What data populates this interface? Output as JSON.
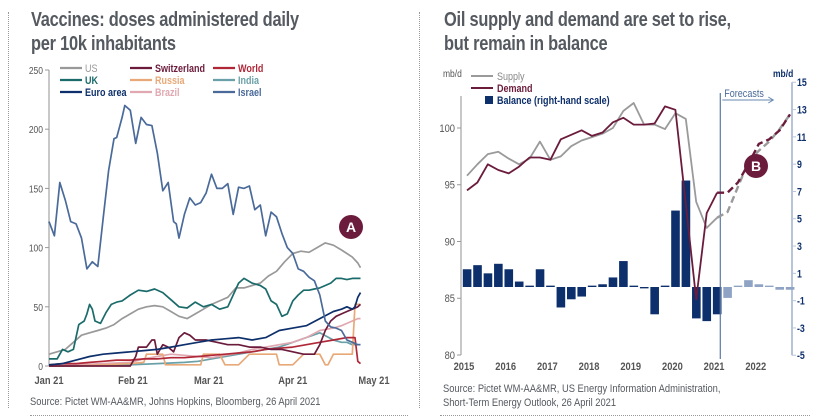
{
  "chart_data": [
    {
      "type": "line",
      "title": "Vaccines: doses administered daily per 10k inhabitants",
      "xlabel": "",
      "ylabel": "",
      "ylim": [
        0,
        250
      ],
      "yticks": [
        0,
        50,
        100,
        150,
        200,
        250
      ],
      "ytick_labels": [
        "0",
        "50",
        "100",
        "150",
        "200",
        "250"
      ],
      "xtick_labels": [
        "Jan 21",
        "Feb 21",
        "Mar 21",
        "Apr 21",
        "May 21"
      ],
      "xtick_days": [
        0,
        31,
        59,
        90,
        120
      ],
      "x_unit": "days since 1 Jan 2021",
      "grid": false,
      "legend_position": "top-left",
      "annotation": "A",
      "source": "Source: Pictet WM-AA&MR, Johns Hopkins, Bloomberg, 26 April 2021",
      "series": [
        {
          "name": "Israel",
          "color": "#4a6a9a",
          "x": [
            0,
            2,
            4,
            6,
            8,
            10,
            12,
            14,
            16,
            18,
            20,
            22,
            24,
            25,
            27,
            28,
            30,
            32,
            34,
            36,
            38,
            40,
            42,
            44,
            46,
            47,
            48,
            50,
            52,
            54,
            56,
            58,
            60,
            62,
            64,
            66,
            68,
            70,
            72,
            74,
            76,
            78,
            80,
            82,
            84,
            86,
            88,
            90,
            92,
            94,
            96,
            98,
            100,
            102,
            104,
            106,
            108,
            110,
            112,
            114,
            115
          ],
          "values": [
            122,
            110,
            155,
            140,
            122,
            120,
            108,
            82,
            88,
            84,
            125,
            165,
            192,
            193,
            210,
            220,
            216,
            188,
            210,
            204,
            203,
            180,
            148,
            155,
            122,
            120,
            108,
            128,
            142,
            136,
            138,
            146,
            162,
            150,
            150,
            154,
            128,
            151,
            150,
            152,
            132,
            136,
            110,
            130,
            126,
            112,
            100,
            95,
            82,
            80,
            75,
            72,
            60,
            38,
            33,
            32,
            30,
            22,
            20,
            18,
            18
          ]
        },
        {
          "name": "UK",
          "color": "#1b6b6b",
          "x": [
            0,
            3,
            5,
            7,
            9,
            11,
            13,
            14,
            15,
            16,
            17,
            19,
            21,
            23,
            25,
            27,
            30,
            33,
            36,
            39,
            42,
            45,
            48,
            51,
            54,
            57,
            60,
            63,
            66,
            68,
            70,
            72,
            75,
            78,
            80,
            82,
            84,
            86,
            88,
            90,
            92,
            94,
            96,
            98,
            100,
            102,
            104,
            106,
            108,
            110,
            112,
            114,
            115
          ],
          "values": [
            6,
            6,
            14,
            12,
            14,
            35,
            38,
            44,
            52,
            48,
            38,
            36,
            45,
            52,
            54,
            55,
            60,
            64,
            63,
            65,
            62,
            56,
            50,
            49,
            54,
            50,
            52,
            48,
            50,
            60,
            70,
            74,
            70,
            68,
            65,
            55,
            52,
            42,
            44,
            55,
            60,
            64,
            64,
            65,
            66,
            68,
            70,
            74,
            74,
            73,
            74,
            74,
            74
          ]
        },
        {
          "name": "US",
          "color": "#999999",
          "x": [
            0,
            3,
            6,
            9,
            12,
            15,
            18,
            21,
            24,
            27,
            30,
            33,
            36,
            39,
            42,
            45,
            48,
            51,
            54,
            57,
            60,
            63,
            66,
            69,
            72,
            75,
            78,
            81,
            84,
            87,
            90,
            93,
            96,
            99,
            102,
            105,
            108,
            110,
            112,
            114,
            115
          ],
          "values": [
            10,
            12,
            14,
            20,
            26,
            28,
            30,
            32,
            35,
            40,
            44,
            48,
            50,
            51,
            50,
            46,
            42,
            40,
            44,
            48,
            52,
            55,
            58,
            66,
            66,
            68,
            70,
            76,
            80,
            88,
            95,
            97,
            96,
            100,
            104,
            102,
            98,
            95,
            92,
            87,
            83
          ]
        },
        {
          "name": "Euro area",
          "color": "#0d2f6b",
          "x": [
            0,
            5,
            10,
            15,
            20,
            25,
            30,
            35,
            40,
            45,
            50,
            55,
            60,
            65,
            70,
            75,
            80,
            85,
            90,
            95,
            100,
            105,
            108,
            110,
            112,
            113,
            114,
            115
          ],
          "values": [
            1,
            2,
            5,
            8,
            10,
            11,
            12,
            13,
            14,
            16,
            18,
            20,
            22,
            23,
            24,
            22,
            24,
            30,
            32,
            34,
            40,
            46,
            48,
            50,
            48,
            50,
            58,
            62
          ]
        },
        {
          "name": "Switzerland",
          "color": "#6b1b3b",
          "x": [
            0,
            10,
            20,
            30,
            32,
            33,
            36,
            38,
            39,
            40,
            42,
            44,
            46,
            48,
            50,
            52,
            54,
            58,
            62,
            66,
            70,
            74,
            78,
            82,
            86,
            90,
            94,
            98,
            100,
            102,
            104,
            106,
            108,
            110,
            112,
            114,
            115
          ],
          "values": [
            0,
            0,
            0,
            0,
            8,
            16,
            16,
            22,
            22,
            10,
            18,
            16,
            12,
            24,
            28,
            26,
            22,
            22,
            20,
            18,
            18,
            16,
            16,
            14,
            14,
            12,
            10,
            10,
            18,
            30,
            38,
            42,
            44,
            46,
            48,
            50,
            52
          ]
        },
        {
          "name": "World",
          "color": "#b02838",
          "x": [
            0,
            5,
            10,
            15,
            20,
            25,
            30,
            35,
            40,
            45,
            50,
            55,
            60,
            65,
            70,
            75,
            80,
            85,
            90,
            95,
            100,
            105,
            110,
            113,
            114,
            115
          ],
          "values": [
            1,
            2,
            2,
            3,
            4,
            5,
            5,
            6,
            6,
            7,
            7,
            8,
            9,
            10,
            11,
            12,
            14,
            15,
            16,
            18,
            20,
            22,
            24,
            24,
            4,
            2
          ]
        },
        {
          "name": "Russia",
          "color": "#e8a878",
          "x": [
            0,
            10,
            20,
            30,
            35,
            36,
            40,
            42,
            43,
            50,
            56,
            57,
            60,
            63,
            65,
            66,
            70,
            74,
            80,
            84,
            85,
            88,
            90,
            94,
            95,
            100,
            102,
            103,
            105,
            106,
            110,
            112,
            113,
            115
          ],
          "values": [
            0,
            0,
            1,
            2,
            3,
            10,
            10,
            10,
            1,
            1,
            1,
            10,
            10,
            10,
            1,
            1,
            1,
            10,
            10,
            10,
            1,
            1,
            1,
            10,
            10,
            10,
            1,
            1,
            10,
            10,
            10,
            10,
            52,
            52
          ]
        },
        {
          "name": "Brazil",
          "color": "#e0a8b0",
          "x": [
            0,
            10,
            20,
            30,
            35,
            40,
            45,
            50,
            55,
            60,
            65,
            70,
            75,
            80,
            85,
            90,
            95,
            100,
            105,
            108,
            110,
            112,
            114,
            115
          ],
          "values": [
            1,
            1,
            2,
            3,
            6,
            8,
            10,
            9,
            8,
            7,
            9,
            11,
            14,
            16,
            18,
            20,
            24,
            30,
            32,
            34,
            36,
            38,
            40,
            40
          ]
        },
        {
          "name": "India",
          "color": "#6aa0a8",
          "x": [
            0,
            10,
            20,
            30,
            40,
            50,
            55,
            60,
            65,
            70,
            75,
            80,
            85,
            90,
            95,
            100,
            105,
            108,
            110,
            112,
            115
          ],
          "values": [
            0,
            0,
            1,
            1,
            2,
            3,
            4,
            6,
            8,
            10,
            12,
            14,
            16,
            20,
            24,
            28,
            22,
            20,
            20,
            18,
            18
          ]
        }
      ]
    },
    {
      "type": "bar+line",
      "title": "Oil supply and demand are set to rise, but remain in balance",
      "ylabel_left": "mb/d",
      "ylabel_right": "mb/d",
      "ylim_left": [
        80,
        103
      ],
      "yticks_left": [
        80,
        85,
        90,
        95,
        100
      ],
      "ylim_right": [
        -5,
        15
      ],
      "yticks_right": [
        -5,
        -3,
        -1,
        1,
        3,
        5,
        7,
        9,
        11,
        13,
        15
      ],
      "xtick_labels": [
        "2015",
        "2016",
        "2017",
        "2018",
        "2019",
        "2020",
        "2021",
        "2022"
      ],
      "x_unit": "quarters since 2015 Q1",
      "forecast_start_quarter": 24.5,
      "forecast_label": "Forecasts",
      "annotation": "B",
      "grid": false,
      "legend_position": "top-left",
      "source_lines": [
        "Source: Pictet WM-AA&MR, US Energy Information Administration,",
        "Short-Term Energy Outlook, 26 April 2021"
      ],
      "legend": [
        {
          "name": "Supply",
          "color": "#9a9a9a",
          "kind": "line"
        },
        {
          "name": "Demand",
          "color": "#6b1b3b",
          "kind": "line"
        },
        {
          "name": "Balance (right-hand scale)",
          "color": "#0d2f6b",
          "kind": "bar"
        }
      ],
      "series": [
        {
          "name": "Supply",
          "axis": "left",
          "color": "#9a9a9a",
          "x": [
            0,
            1,
            2,
            3,
            4,
            5,
            6,
            7,
            8,
            9,
            10,
            11,
            12,
            13,
            14,
            15,
            16,
            17,
            18,
            19,
            20,
            21,
            22,
            23,
            24,
            25,
            26,
            27,
            28,
            29,
            30,
            31
          ],
          "values": [
            95.8,
            96.8,
            97.7,
            97.9,
            97.3,
            96.8,
            97.3,
            98.8,
            97.2,
            97.5,
            98.4,
            98.9,
            99.2,
            99.5,
            100.0,
            101.5,
            102.2,
            100.3,
            100.3,
            99.9,
            101.3,
            100.8,
            93.5,
            91.2,
            92.1,
            92.6,
            94.8,
            97.0,
            98.0,
            98.8,
            99.9,
            101.2
          ],
          "forecast_from": 24.5
        },
        {
          "name": "Demand",
          "axis": "left",
          "color": "#6b1b3b",
          "x": [
            0,
            1,
            2,
            3,
            4,
            5,
            6,
            7,
            8,
            9,
            10,
            11,
            12,
            13,
            14,
            15,
            16,
            17,
            18,
            19,
            20,
            21,
            22,
            23,
            24,
            25,
            26,
            27,
            28,
            29,
            30,
            31
          ],
          "values": [
            94.5,
            95.2,
            96.8,
            96.3,
            96.0,
            96.6,
            97.4,
            97.4,
            97.2,
            99.0,
            99.4,
            99.8,
            99.3,
            99.6,
            100.5,
            100.9,
            100.3,
            100.3,
            100.4,
            101.9,
            101.6,
            93.3,
            84.9,
            92.5,
            94.3,
            94.3,
            95.2,
            96.8,
            98.6,
            99.0,
            99.8,
            101.2
          ],
          "forecast_from": 24.5
        },
        {
          "name": "Balance (right-hand scale)",
          "axis": "right",
          "color": "#0d2f6b",
          "forecast_color": "#8fa4c4",
          "x": [
            0,
            1,
            2,
            3,
            4,
            5,
            6,
            7,
            8,
            9,
            10,
            11,
            12,
            13,
            14,
            15,
            16,
            17,
            18,
            19,
            20,
            21,
            22,
            23,
            24,
            25,
            26,
            27,
            28,
            29,
            30,
            31
          ],
          "values": [
            1.3,
            1.6,
            1.0,
            1.7,
            1.3,
            0.4,
            0.1,
            1.3,
            0.1,
            -1.5,
            -0.9,
            -0.7,
            0.1,
            0.2,
            0.7,
            1.9,
            0.1,
            -0.1,
            -2.0,
            0.1,
            5.6,
            7.8,
            -2.3,
            -2.5,
            -2.0,
            -0.8,
            0.1,
            0.5,
            0.2,
            0.1,
            -0.2,
            -0.2
          ],
          "forecast_from": 25
        }
      ]
    }
  ]
}
